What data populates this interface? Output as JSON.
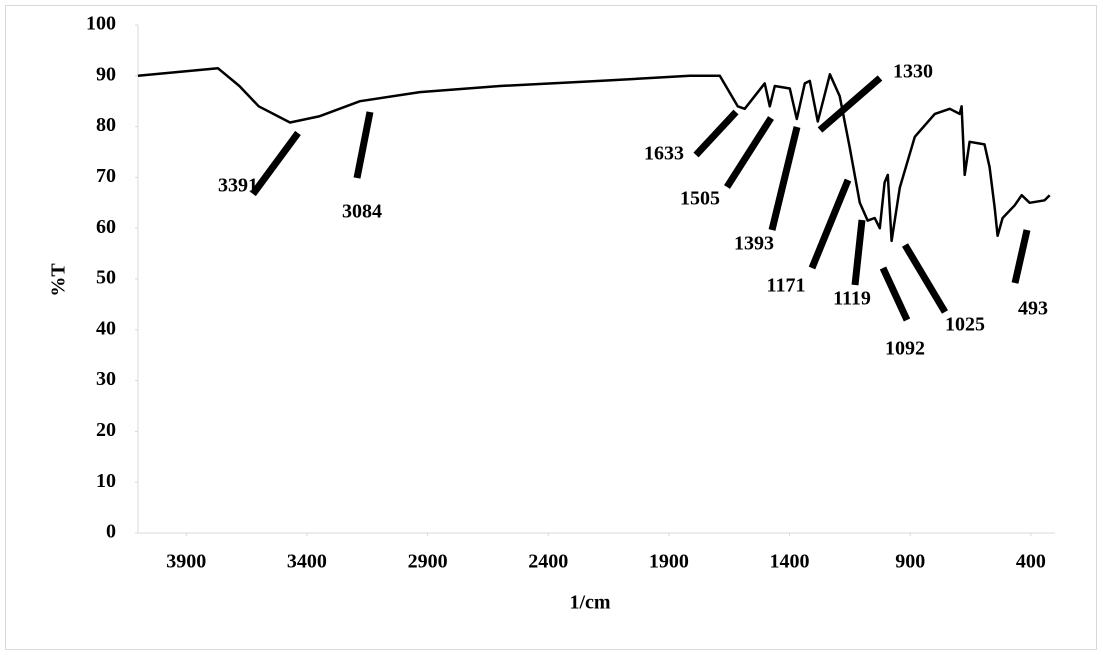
{
  "chart_data": {
    "type": "line",
    "x_label": "1/cm",
    "y_label": "%T",
    "xlim": [
      4100,
      300
    ],
    "ylim": [
      0,
      100
    ],
    "xticks": [
      3900,
      3400,
      2900,
      2400,
      1900,
      1400,
      900,
      400
    ],
    "yticks": [
      0,
      10,
      20,
      30,
      40,
      50,
      60,
      70,
      80,
      90,
      100
    ],
    "grid": false,
    "series": [
      {
        "color": "#000000",
        "x": [
          4100,
          3769,
          3680,
          3600,
          3470,
          3350,
          3180,
          2932,
          2600,
          2186,
          1813,
          1689,
          1615,
          1586,
          1503,
          1482,
          1461,
          1399,
          1370,
          1337,
          1316,
          1283,
          1233,
          1192,
          1151,
          1109,
          1076,
          1047,
          1026,
          1006,
          993,
          977,
          943,
          881,
          798,
          736,
          695,
          687,
          674,
          654,
          592,
          571,
          550,
          538,
          517,
          467,
          438,
          405,
          343,
          322
        ],
        "values": [
          90,
          91.5,
          88,
          84,
          80.8,
          82,
          85,
          86.8,
          88,
          89,
          90,
          90,
          84,
          83.5,
          88.5,
          84,
          88,
          87.5,
          81.5,
          88.5,
          89,
          81,
          90.3,
          86,
          76,
          65,
          61.5,
          62,
          60,
          69,
          70.5,
          57.5,
          68,
          78,
          82.5,
          83.5,
          82.5,
          84,
          70.5,
          77,
          76.5,
          72,
          64,
          58.5,
          62,
          64.5,
          66.5,
          65,
          65.5,
          66.5
        ]
      }
    ],
    "annotations": [
      "3391",
      "3084",
      "1633",
      "1505",
      "1393",
      "1330",
      "1171",
      "1119",
      "1092",
      "1025",
      "493"
    ]
  }
}
